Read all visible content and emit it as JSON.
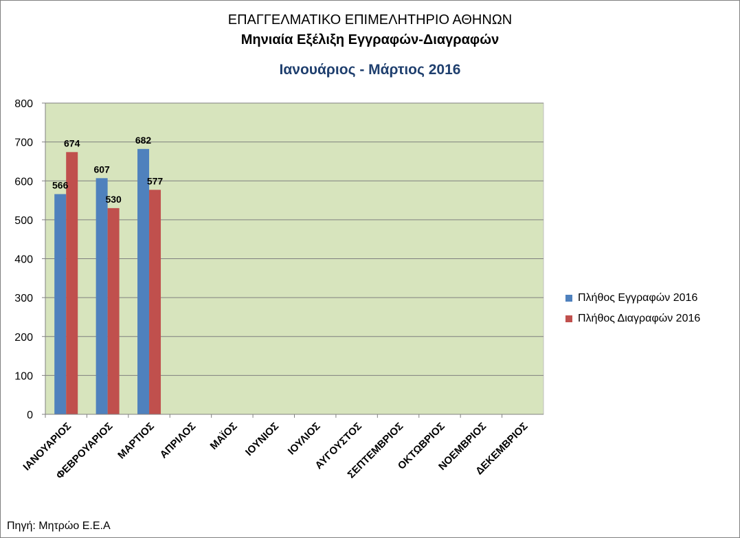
{
  "chart_data": {
    "type": "bar",
    "title": "ΕΠΑΓΓΕΛΜΑΤΙΚΟ ΕΠΙΜΕΛΗΤΗΡΙΟ ΑΘΗΝΩΝ",
    "title_line2": "Μηνιαία Εξέλιξη Εγγραφών-Διαγραφών",
    "subtitle": "Ιανουάριος - Μάρτιος 2016",
    "source": "Πηγή: Μητρώο Ε.Ε.Α",
    "xlabel": "",
    "ylabel": "",
    "ylim": [
      0,
      800
    ],
    "yticks": [
      0,
      100,
      200,
      300,
      400,
      500,
      600,
      700,
      800
    ],
    "grid": true,
    "legend_position": "right",
    "categories": [
      "ΙΑΝΟΥΑΡΙΟΣ",
      "ΦΕΒΡΟΥΑΡΙΟΣ",
      "ΜΑΡΤΙΟΣ",
      "ΑΠΡΙΛΟΣ",
      "ΜΑΪΟΣ",
      "ΙΟΥΝΙΟΣ",
      "ΙΟΥΛΙΟΣ",
      "ΑΥΓΟΥΣΤΟΣ",
      "ΣΕΠΤΕΜΒΡΙΟΣ",
      "ΟΚΤΩΒΡΙΟΣ",
      "ΝΟΕΜΒΡΙΟΣ",
      "ΔΕΚΕΜΒΡΙΟΣ"
    ],
    "series": [
      {
        "name": "Πλήθος Εγγραφών 2016",
        "color": "#4f81bd",
        "values": [
          566,
          607,
          682,
          null,
          null,
          null,
          null,
          null,
          null,
          null,
          null,
          null
        ]
      },
      {
        "name": "Πλήθος Διαγραφών 2016",
        "color": "#c0504d",
        "values": [
          674,
          530,
          577,
          null,
          null,
          null,
          null,
          null,
          null,
          null,
          null,
          null
        ]
      }
    ],
    "plot_background": "#d7e4bd"
  }
}
